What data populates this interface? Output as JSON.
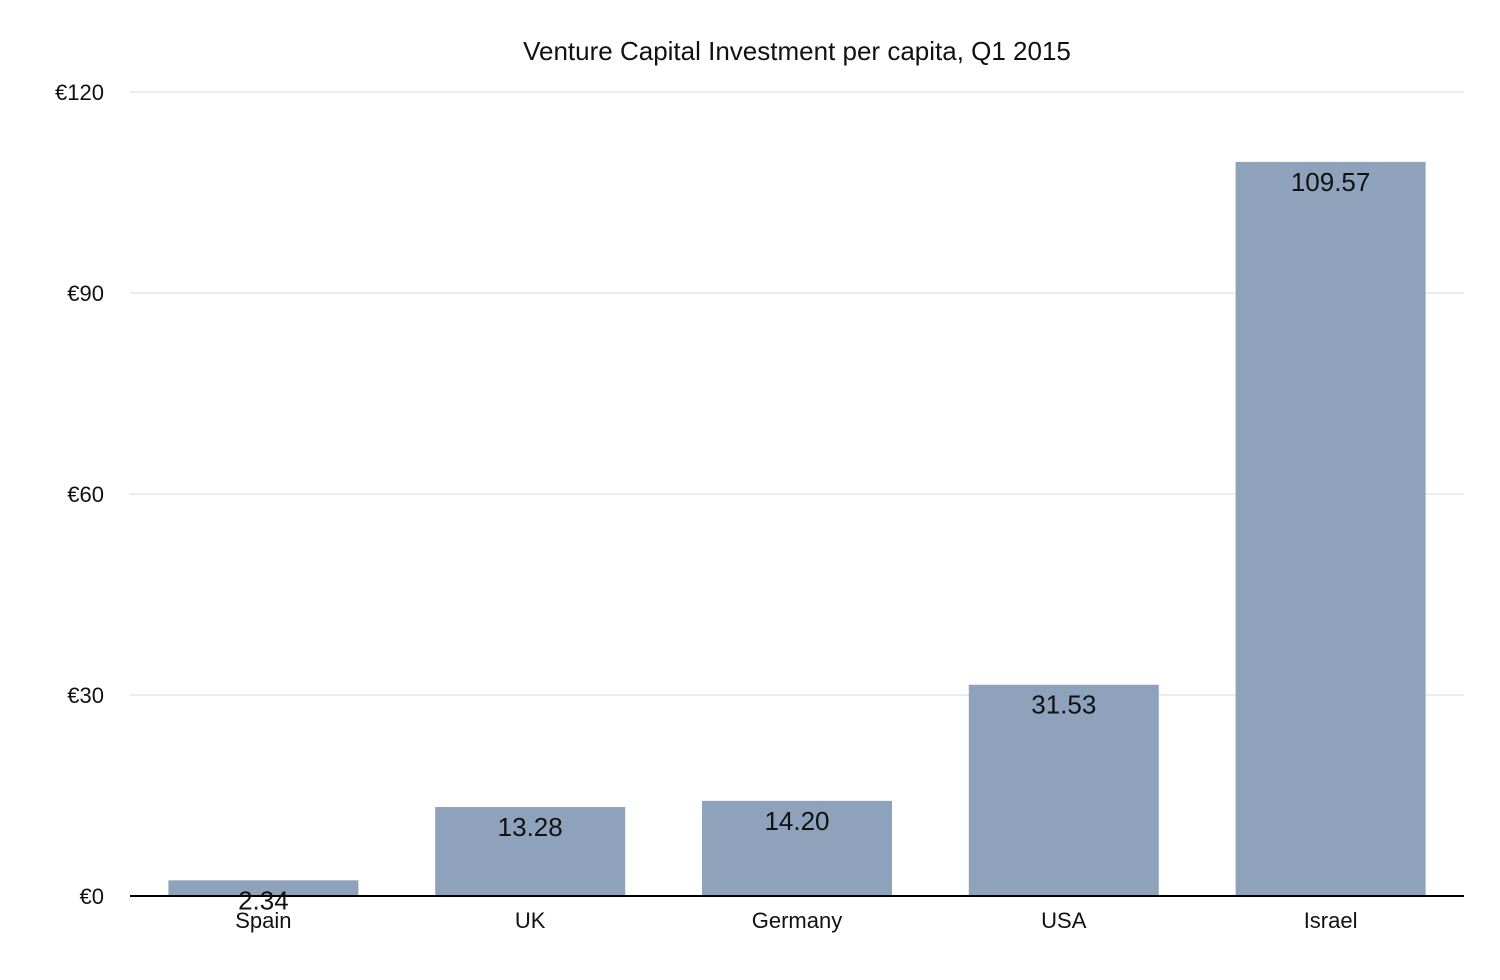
{
  "chart_data": {
    "type": "bar",
    "title": "Venture Capital Investment per capita, Q1 2015",
    "xlabel": "",
    "ylabel": "",
    "categories": [
      "Spain",
      "UK",
      "Germany",
      "USA",
      "Israel"
    ],
    "values": [
      2.34,
      13.28,
      14.2,
      31.53,
      109.57
    ],
    "value_labels": [
      "2.34",
      "13.28",
      "14.20",
      "31.53",
      "109.57"
    ],
    "ylim": [
      0,
      120
    ],
    "yticks": [
      0,
      30,
      60,
      90,
      120
    ],
    "ytick_labels": [
      "€0",
      "€30",
      "€60",
      "€90",
      "€120"
    ],
    "grid": true,
    "legend": "none",
    "bar_color": "#8ea3bb",
    "grid_color": "#d9d9d9",
    "axis_color": "#000000",
    "text_color": "#111111"
  }
}
